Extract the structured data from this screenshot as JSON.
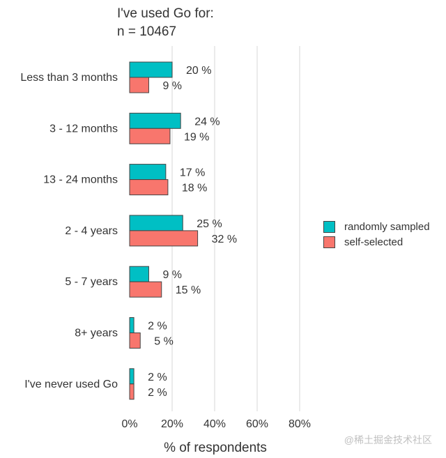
{
  "chart_data": {
    "type": "bar",
    "orientation": "horizontal",
    "title": "I've used Go for:",
    "subtitle": "n = 10467",
    "xlabel": "% of respondents",
    "categories": [
      "Less than 3 months",
      "3 - 12 months",
      "13 - 24 months",
      "2 - 4 years",
      "5 - 7 years",
      "8+ years",
      "I've never used Go"
    ],
    "series": [
      {
        "name": "randomly sampled",
        "color": "#00BFC4",
        "values": [
          20,
          24,
          17,
          25,
          9,
          2,
          2
        ],
        "labels": [
          "20 %",
          "24 %",
          "17 %",
          "25 %",
          "9 %",
          "2 %",
          "2 %"
        ]
      },
      {
        "name": "self-selected",
        "color": "#F8766D",
        "values": [
          9,
          19,
          18,
          32,
          15,
          5,
          2
        ],
        "labels": [
          "9 %",
          "19 %",
          "18 %",
          "32 %",
          "15 %",
          "5 %",
          "2 %"
        ]
      }
    ],
    "xlim": [
      0,
      85
    ],
    "xticks": [
      0,
      20,
      40,
      60,
      80
    ],
    "xtick_labels": [
      "0%",
      "20%",
      "40%",
      "60%",
      "80%"
    ],
    "grid": true,
    "legend_position": "right"
  },
  "watermark": "@稀土掘金技术社区"
}
